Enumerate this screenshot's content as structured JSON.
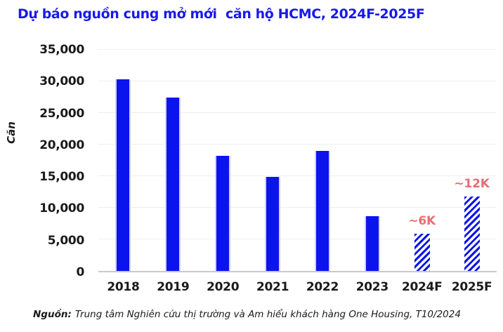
{
  "title": "Dự báo nguồn cung mở mới  căn hộ HCMC, 2024F-2025F",
  "source_note": {
    "prefix": "Nguồn:",
    "text": "Trung tâm Nghiên cứu thị trường và Am hiểu khách hàng One Housing, T10/2024"
  },
  "colors": {
    "bar": "#0c14ee",
    "bar_edge": "#ced2f7",
    "title": "#1a19e8",
    "annotation": "#e76d74",
    "gridline": "#efefef",
    "axis_line": "#c9c9c9",
    "text": "#1a1a1a"
  },
  "chart_data": {
    "type": "bar",
    "title": "Dự báo nguồn cung mở mới  căn hộ HCMC, 2024F-2025F",
    "xlabel": "",
    "ylabel": "Căn",
    "categories": [
      "2018",
      "2019",
      "2020",
      "2021",
      "2022",
      "2023",
      "2024F",
      "2025F"
    ],
    "values": [
      30300,
      27500,
      18200,
      14900,
      19000,
      8700,
      5900,
      11800
    ],
    "bar_styles": [
      "solid",
      "solid",
      "solid",
      "solid",
      "solid",
      "solid",
      "hatched",
      "hatched"
    ],
    "annotations": [
      {
        "category": "2024F",
        "label": "~6K"
      },
      {
        "category": "2025F",
        "label": "~12K"
      }
    ],
    "ylim": [
      0,
      35000
    ],
    "ytick_step": 5000,
    "ytick_labels": [
      "0",
      "5,000",
      "10,000",
      "15,000",
      "20,000",
      "25,000",
      "30,000",
      "35,000"
    ],
    "grid": "horizontal",
    "legend": "none"
  }
}
